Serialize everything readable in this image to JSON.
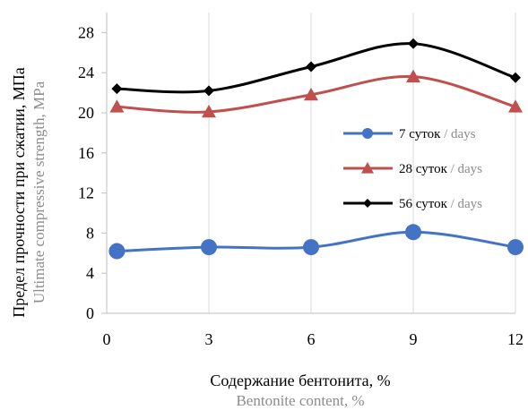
{
  "chart_data": {
    "type": "line",
    "x": [
      0.3,
      3,
      6,
      9,
      12
    ],
    "xlim": [
      0,
      12
    ],
    "ylim": [
      0,
      30
    ],
    "xticks": [
      "0",
      "3",
      "6",
      "9",
      "12"
    ],
    "yticks": [
      "0",
      "4",
      "8",
      "12",
      "16",
      "20",
      "24",
      "28"
    ],
    "xlabel_ru": "Содержание бентонита, %",
    "xlabel_en": "Bentonite content, %",
    "ylabel_ru": "Предел прочности при сжатии, МПа",
    "ylabel_en": "Ultimate compressive strength, MPa",
    "grid": "vertical",
    "legend_position": "right",
    "series": [
      {
        "name_ru": "7 суток",
        "name_en": "/ days",
        "color": "#4472c4",
        "marker": "circle",
        "values": [
          6.2,
          6.6,
          6.6,
          8.1,
          6.6
        ]
      },
      {
        "name_ru": "28 суток",
        "name_en": "/ days",
        "color": "#c0504d",
        "marker": "triangle",
        "values": [
          20.6,
          20.1,
          21.8,
          23.6,
          20.6
        ]
      },
      {
        "name_ru": "56 суток",
        "name_en": "/ days",
        "color": "#000000",
        "marker": "diamond",
        "values": [
          22.4,
          22.2,
          24.6,
          26.9,
          23.5
        ]
      }
    ]
  }
}
